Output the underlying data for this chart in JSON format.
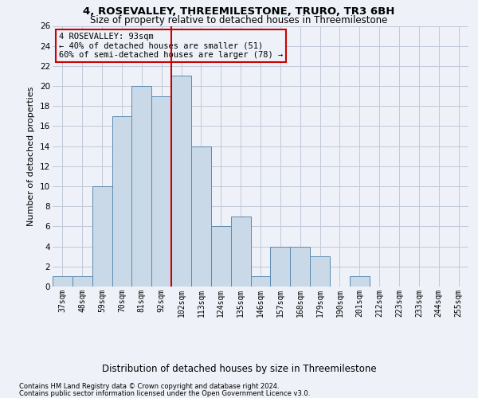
{
  "title1": "4, ROSEVALLEY, THREEMILESTONE, TRURO, TR3 6BH",
  "title2": "Size of property relative to detached houses in Threemilestone",
  "xlabel": "Distribution of detached houses by size in Threemilestone",
  "ylabel": "Number of detached properties",
  "footnote1": "Contains HM Land Registry data © Crown copyright and database right 2024.",
  "footnote2": "Contains public sector information licensed under the Open Government Licence v3.0.",
  "annotation_line1": "4 ROSEVALLEY: 93sqm",
  "annotation_line2": "← 40% of detached houses are smaller (51)",
  "annotation_line3": "60% of semi-detached houses are larger (78) →",
  "bar_labels": [
    "37sqm",
    "48sqm",
    "59sqm",
    "70sqm",
    "81sqm",
    "92sqm",
    "102sqm",
    "113sqm",
    "124sqm",
    "135sqm",
    "146sqm",
    "157sqm",
    "168sqm",
    "179sqm",
    "190sqm",
    "201sqm",
    "212sqm",
    "223sqm",
    "233sqm",
    "244sqm",
    "255sqm"
  ],
  "bar_values": [
    1,
    1,
    10,
    17,
    20,
    19,
    21,
    14,
    6,
    7,
    1,
    4,
    4,
    3,
    0,
    1,
    0,
    0,
    0,
    0,
    0
  ],
  "bar_color": "#c9d9e8",
  "bar_edge_color": "#5a8ab0",
  "vline_x": 5.5,
  "vline_color": "#cc0000",
  "ylim": [
    0,
    26
  ],
  "yticks": [
    0,
    2,
    4,
    6,
    8,
    10,
    12,
    14,
    16,
    18,
    20,
    22,
    24,
    26
  ],
  "grid_color": "#c0c8d8",
  "annotation_box_color": "#cc0000",
  "bg_color": "#eef2f8",
  "title1_fontsize": 9.5,
  "title2_fontsize": 8.5,
  "ylabel_fontsize": 8,
  "xlabel_fontsize": 8.5,
  "tick_fontsize": 7,
  "footnote_fontsize": 6
}
